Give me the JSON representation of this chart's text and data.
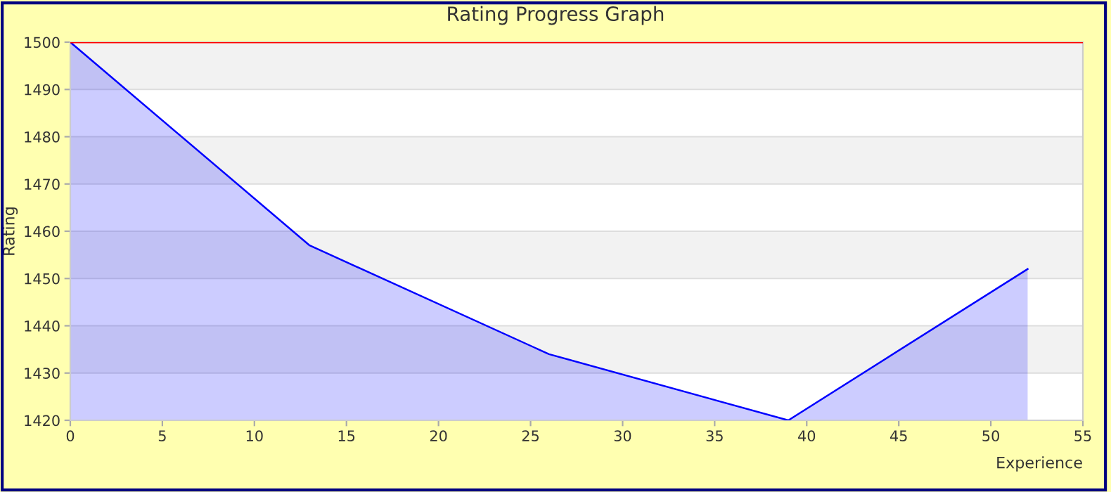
{
  "chart_data": {
    "type": "area",
    "title": "Rating Progress Graph",
    "xlabel": "Experience",
    "ylabel": "Rating",
    "x": [
      0,
      13,
      26,
      39,
      52
    ],
    "series": [
      {
        "color": "#0000ff",
        "values": [
          1500,
          1457,
          1434,
          1420,
          1452
        ]
      }
    ],
    "xlim": [
      0,
      55
    ],
    "xticks": [
      0,
      5,
      10,
      15,
      20,
      25,
      30,
      35,
      40,
      45,
      50,
      55
    ],
    "ylim": [
      1420,
      1500
    ],
    "yticks": [
      1420,
      1430,
      1440,
      1450,
      1460,
      1470,
      1480,
      1490,
      1500
    ],
    "ref_lines": [
      {
        "axis": "y",
        "value": 1500,
        "color": "#ff0000"
      }
    ],
    "grid": "y",
    "legend": false
  }
}
